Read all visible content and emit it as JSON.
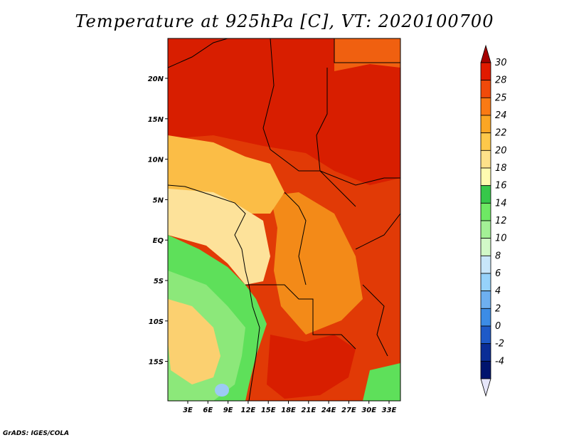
{
  "title": "Temperature at 925hPa [C], VT: 2020100700",
  "credit": "GrADS: IGES/COLA",
  "map": {
    "lon_ticks": [
      "3E",
      "6E",
      "9E",
      "12E",
      "15E",
      "18E",
      "21E",
      "24E",
      "27E",
      "30E",
      "33E"
    ],
    "lat_ticks": [
      "20N",
      "15N",
      "10N",
      "5N",
      "EQ",
      "5S",
      "10S",
      "15S"
    ]
  },
  "colorbar": {
    "levels": [
      "30",
      "28",
      "25",
      "24",
      "22",
      "20",
      "18",
      "16",
      "14",
      "12",
      "10",
      "8",
      "6",
      "4",
      "2",
      "0",
      "-2",
      "-4"
    ],
    "colors": [
      "#a50000",
      "#e11a00",
      "#f04a0a",
      "#fa7a14",
      "#fba624",
      "#fdc84a",
      "#fde18a",
      "#fffbb0",
      "#36c84a",
      "#6ee864",
      "#a4f096",
      "#d2f8c8",
      "#c8e6fa",
      "#96d2fa",
      "#6eaff0",
      "#3c8ce6",
      "#1e5ac8",
      "#0a2d96",
      "#00146e",
      "#e6e6fa"
    ]
  },
  "colors": {
    "hot": "#d81e00",
    "warm": "#ef5a0e",
    "orange": "#f88a16",
    "yellow": "#fbd070",
    "pale": "#fde49a",
    "green": "#5ce05c",
    "lightgreen": "#a0f08c",
    "blue": "#9ccaf4"
  }
}
